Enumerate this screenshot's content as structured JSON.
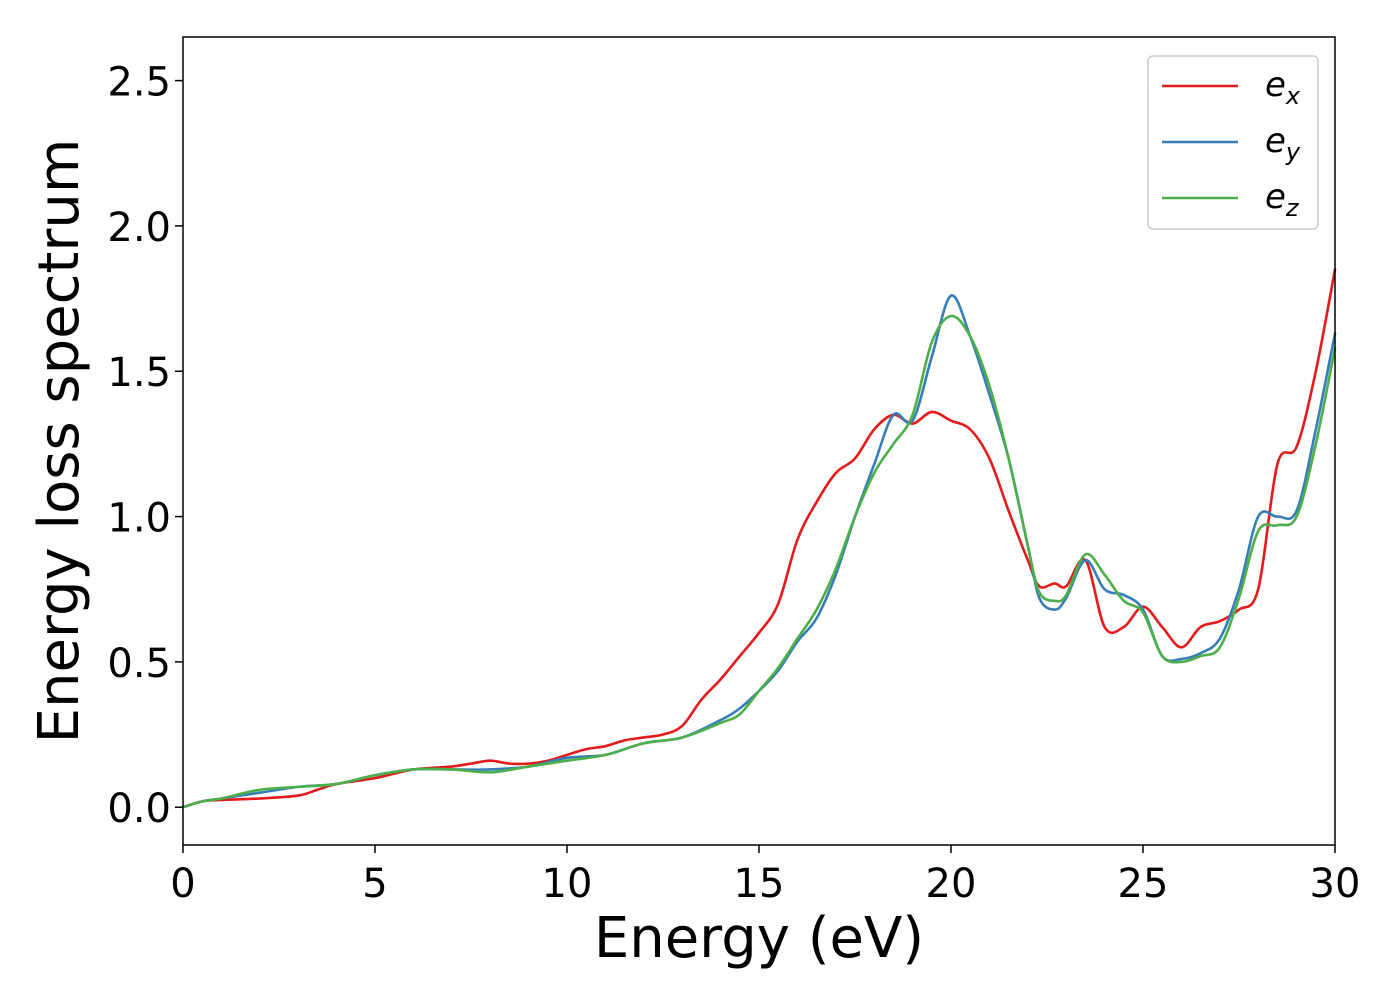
{
  "chart_data": {
    "type": "line",
    "xlabel": "Energy (eV)",
    "ylabel": "Energy loss spectrum",
    "xlim": [
      0,
      30
    ],
    "ylim": [
      -0.13,
      2.65
    ],
    "xticks": [
      0,
      5,
      10,
      15,
      20,
      25,
      30
    ],
    "yticks": [
      0.0,
      0.5,
      1.0,
      1.5,
      2.0,
      2.5
    ],
    "xtick_labels": [
      "0",
      "5",
      "10",
      "15",
      "20",
      "25",
      "30"
    ],
    "ytick_labels": [
      "0.0",
      "0.5",
      "1.0",
      "1.5",
      "2.0",
      "2.5"
    ],
    "grid": false,
    "legend_position": "top-right",
    "colors": {
      "ex": "#e41a1c",
      "ey": "#377eb8",
      "ez": "#4daf4a"
    },
    "series": [
      {
        "name": "e_x",
        "main": "e",
        "sub": "x",
        "color": "#e41a1c",
        "x": [
          0,
          0.5,
          1,
          2,
          3,
          3.5,
          4,
          5,
          6,
          7,
          7.5,
          8,
          8.5,
          9,
          9.5,
          10,
          10.5,
          11,
          11.5,
          12,
          12.5,
          13,
          13.5,
          14,
          14.5,
          15,
          15.5,
          16,
          16.5,
          17,
          17.5,
          18,
          18.5,
          19,
          19.5,
          20,
          20.5,
          21,
          21.5,
          22,
          22.3,
          22.7,
          23,
          23.5,
          24,
          24.5,
          25,
          25.5,
          26,
          26.5,
          27,
          27.5,
          28,
          28.5,
          29,
          29.5,
          30
        ],
        "y": [
          0.0,
          0.02,
          0.025,
          0.03,
          0.04,
          0.06,
          0.08,
          0.1,
          0.13,
          0.14,
          0.15,
          0.16,
          0.15,
          0.15,
          0.16,
          0.18,
          0.2,
          0.21,
          0.23,
          0.24,
          0.25,
          0.28,
          0.37,
          0.44,
          0.52,
          0.6,
          0.7,
          0.92,
          1.05,
          1.15,
          1.2,
          1.3,
          1.35,
          1.32,
          1.36,
          1.33,
          1.3,
          1.2,
          1.02,
          0.85,
          0.76,
          0.77,
          0.76,
          0.85,
          0.62,
          0.62,
          0.69,
          0.62,
          0.55,
          0.62,
          0.64,
          0.68,
          0.75,
          1.18,
          1.24,
          1.5,
          1.85
        ]
      },
      {
        "name": "e_y",
        "main": "e",
        "sub": "y",
        "color": "#377eb8",
        "x": [
          0,
          0.5,
          1,
          2,
          3,
          4,
          5,
          6,
          7,
          8,
          9,
          10,
          11,
          12,
          13,
          14,
          14.5,
          15,
          15.5,
          16,
          16.5,
          17,
          17.5,
          18,
          18.5,
          19,
          19.5,
          20,
          20.5,
          21,
          21.5,
          22,
          22.3,
          22.7,
          23,
          23.5,
          24,
          24.5,
          25,
          25.5,
          26,
          26.5,
          27,
          27.5,
          28,
          28.5,
          29,
          29.5,
          30
        ],
        "y": [
          0.0,
          0.02,
          0.03,
          0.05,
          0.07,
          0.08,
          0.11,
          0.13,
          0.13,
          0.13,
          0.14,
          0.17,
          0.18,
          0.22,
          0.24,
          0.3,
          0.34,
          0.4,
          0.47,
          0.57,
          0.65,
          0.8,
          1.0,
          1.18,
          1.35,
          1.33,
          1.55,
          1.76,
          1.62,
          1.42,
          1.2,
          0.9,
          0.72,
          0.68,
          0.72,
          0.85,
          0.75,
          0.73,
          0.68,
          0.52,
          0.51,
          0.53,
          0.58,
          0.75,
          1.0,
          1.0,
          1.02,
          1.3,
          1.63
        ]
      },
      {
        "name": "e_z",
        "main": "e",
        "sub": "z",
        "color": "#4daf4a",
        "x": [
          0,
          0.5,
          1,
          2,
          3,
          4,
          5,
          6,
          7,
          8,
          9,
          10,
          11,
          12,
          13,
          14,
          14.5,
          15,
          15.5,
          16,
          16.5,
          17,
          17.5,
          18,
          18.5,
          19,
          19.5,
          20,
          20.5,
          21,
          21.5,
          22,
          22.3,
          22.7,
          23,
          23.5,
          24,
          24.5,
          25,
          25.5,
          26,
          26.5,
          27,
          27.5,
          28,
          28.5,
          29,
          29.5,
          30
        ],
        "y": [
          0.0,
          0.02,
          0.03,
          0.06,
          0.07,
          0.08,
          0.11,
          0.13,
          0.13,
          0.12,
          0.14,
          0.16,
          0.18,
          0.22,
          0.24,
          0.29,
          0.32,
          0.4,
          0.48,
          0.58,
          0.68,
          0.82,
          1.0,
          1.15,
          1.25,
          1.35,
          1.6,
          1.69,
          1.62,
          1.45,
          1.2,
          0.9,
          0.74,
          0.71,
          0.73,
          0.87,
          0.8,
          0.71,
          0.67,
          0.52,
          0.5,
          0.52,
          0.55,
          0.72,
          0.95,
          0.97,
          1.0,
          1.25,
          1.58
        ]
      }
    ]
  }
}
